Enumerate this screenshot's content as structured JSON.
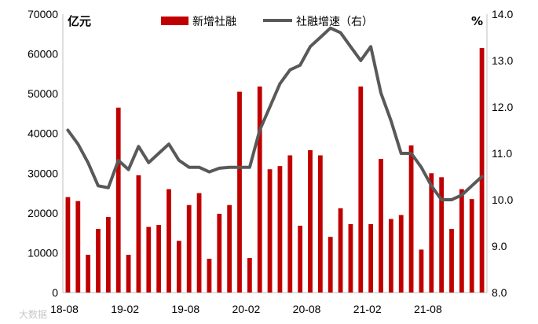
{
  "chart_data": {
    "type": "bar",
    "title": "",
    "left_unit": "亿元",
    "right_unit": "%",
    "ylim": [
      0,
      70000
    ],
    "yticks": [
      "0",
      "10000",
      "20000",
      "30000",
      "40000",
      "50000",
      "60000",
      "70000"
    ],
    "y2lim": [
      8.0,
      14.0
    ],
    "y2ticks": [
      "8.0",
      "9.0",
      "10.0",
      "11.0",
      "12.0",
      "13.0",
      "14.0"
    ],
    "x_tick_labels": [
      "18-08",
      "19-02",
      "19-08",
      "20-02",
      "20-08",
      "21-02",
      "21-08"
    ],
    "legend_position": "top",
    "categories": [
      "18-08",
      "18-09",
      "18-10",
      "18-11",
      "18-12",
      "19-01",
      "19-02",
      "19-03",
      "19-04",
      "19-05",
      "19-06",
      "19-07",
      "19-08",
      "19-09",
      "19-10",
      "19-11",
      "19-12",
      "20-01",
      "20-02",
      "20-03",
      "20-04",
      "20-05",
      "20-06",
      "20-07",
      "20-08",
      "20-09",
      "20-10",
      "20-11",
      "20-12",
      "21-01",
      "21-02",
      "21-03",
      "21-04",
      "21-05",
      "21-06",
      "21-07",
      "21-08",
      "21-09",
      "21-10",
      "21-11",
      "21-12",
      "22-01"
    ],
    "series": [
      {
        "name": "新增社融",
        "type": "bar",
        "axis": "left",
        "color": "#c00000",
        "values": [
          24000,
          23000,
          9500,
          16000,
          19000,
          46500,
          9500,
          29500,
          16500,
          17000,
          26000,
          13000,
          22000,
          25000,
          8500,
          19800,
          22000,
          50500,
          8700,
          51800,
          31000,
          31800,
          34500,
          16800,
          35800,
          34500,
          14000,
          21200,
          17200,
          51800,
          17200,
          33600,
          18500,
          19500,
          37000,
          10800,
          30000,
          29000,
          16000,
          26000,
          23500,
          61500
        ]
      },
      {
        "name": "社融增速（右）",
        "type": "line",
        "axis": "right",
        "color": "#595959",
        "values": [
          11.5,
          11.2,
          10.8,
          10.3,
          10.26,
          10.85,
          10.65,
          11.15,
          10.8,
          11.0,
          11.2,
          10.85,
          10.7,
          10.7,
          10.6,
          10.68,
          10.7,
          10.7,
          10.7,
          11.5,
          12.0,
          12.5,
          12.8,
          12.9,
          13.3,
          13.5,
          13.7,
          13.6,
          13.3,
          13.0,
          13.3,
          12.3,
          11.7,
          11.0,
          11.0,
          10.7,
          10.3,
          10.0,
          10.0,
          10.1,
          10.3,
          10.5
        ]
      }
    ]
  },
  "watermark": "大数据"
}
